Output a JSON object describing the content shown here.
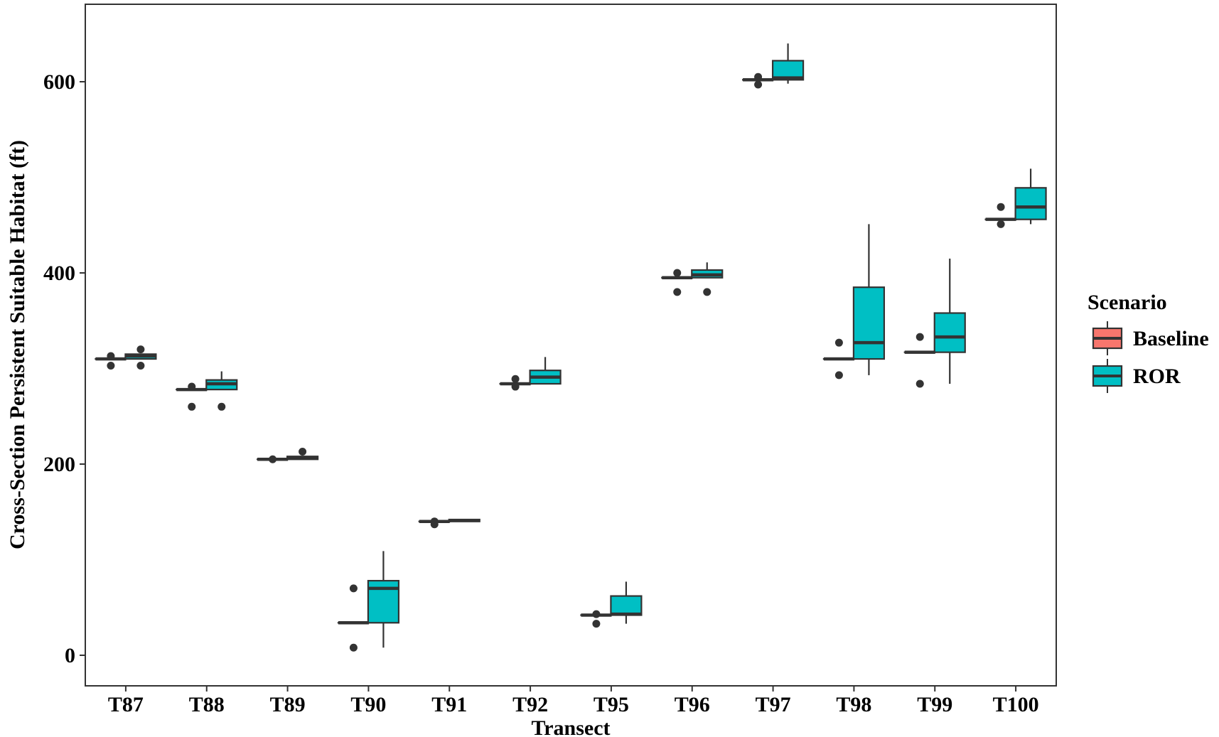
{
  "chart_data": {
    "type": "boxplot",
    "xlabel": "Transect",
    "ylabel": "Cross-Section Persistent Suitable Habitat (ft)",
    "ylim": [
      -30,
      680
    ],
    "yticks": [
      0,
      200,
      400,
      600
    ],
    "grid": false,
    "legend": {
      "title": "Scenario",
      "placement": "right",
      "entries": [
        {
          "name": "Baseline",
          "color": "#F8766D"
        },
        {
          "name": "ROR",
          "color": "#00BFC4"
        }
      ]
    },
    "categories": [
      "T87",
      "T88",
      "T89",
      "T90",
      "T91",
      "T92",
      "T95",
      "T96",
      "T97",
      "T98",
      "T99",
      "T100"
    ],
    "series": [
      {
        "name": "Baseline",
        "color": "#F8766D",
        "boxes": [
          {
            "q1": 310,
            "median": 310,
            "q3": 310,
            "whisker_low": 310,
            "whisker_high": 310,
            "outliers": [
              303,
              313
            ]
          },
          {
            "q1": 278,
            "median": 278,
            "q3": 278,
            "whisker_low": 278,
            "whisker_high": 278,
            "outliers": [
              260,
              281
            ]
          },
          {
            "q1": 205,
            "median": 205,
            "q3": 205,
            "whisker_low": 205,
            "whisker_high": 205,
            "outliers": [
              205
            ]
          },
          {
            "q1": 34,
            "median": 34,
            "q3": 34,
            "whisker_low": 34,
            "whisker_high": 34,
            "outliers": [
              8,
              70
            ]
          },
          {
            "q1": 140,
            "median": 140,
            "q3": 140,
            "whisker_low": 140,
            "whisker_high": 140,
            "outliers": [
              137,
              140
            ]
          },
          {
            "q1": 284,
            "median": 284,
            "q3": 284,
            "whisker_low": 284,
            "whisker_high": 284,
            "outliers": [
              281,
              289
            ]
          },
          {
            "q1": 42,
            "median": 42,
            "q3": 42,
            "whisker_low": 42,
            "whisker_high": 42,
            "outliers": [
              33,
              43
            ]
          },
          {
            "q1": 395,
            "median": 395,
            "q3": 395,
            "whisker_low": 395,
            "whisker_high": 395,
            "outliers": [
              380,
              400
            ]
          },
          {
            "q1": 602,
            "median": 602,
            "q3": 602,
            "whisker_low": 602,
            "whisker_high": 602,
            "outliers": [
              597,
              605
            ]
          },
          {
            "q1": 310,
            "median": 310,
            "q3": 310,
            "whisker_low": 310,
            "whisker_high": 310,
            "outliers": [
              293,
              327
            ]
          },
          {
            "q1": 317,
            "median": 317,
            "q3": 317,
            "whisker_low": 317,
            "whisker_high": 317,
            "outliers": [
              284,
              333
            ]
          },
          {
            "q1": 456,
            "median": 456,
            "q3": 456,
            "whisker_low": 456,
            "whisker_high": 456,
            "outliers": [
              451,
              469
            ]
          }
        ]
      },
      {
        "name": "ROR",
        "color": "#00BFC4",
        "boxes": [
          {
            "q1": 310,
            "median": 313,
            "q3": 315,
            "whisker_low": 310,
            "whisker_high": 315,
            "outliers": [
              303,
              320
            ]
          },
          {
            "q1": 278,
            "median": 284,
            "q3": 288,
            "whisker_low": 278,
            "whisker_high": 297,
            "outliers": [
              260
            ]
          },
          {
            "q1": 205,
            "median": 207,
            "q3": 208,
            "whisker_low": 205,
            "whisker_high": 208,
            "outliers": [
              213
            ]
          },
          {
            "q1": 34,
            "median": 70,
            "q3": 78,
            "whisker_low": 8,
            "whisker_high": 109,
            "outliers": []
          },
          {
            "q1": 140,
            "median": 141,
            "q3": 142,
            "whisker_low": 140,
            "whisker_high": 142,
            "outliers": []
          },
          {
            "q1": 284,
            "median": 291,
            "q3": 298,
            "whisker_low": 284,
            "whisker_high": 312,
            "outliers": []
          },
          {
            "q1": 42,
            "median": 43,
            "q3": 62,
            "whisker_low": 33,
            "whisker_high": 77,
            "outliers": []
          },
          {
            "q1": 395,
            "median": 398,
            "q3": 403,
            "whisker_low": 395,
            "whisker_high": 411,
            "outliers": [
              380
            ]
          },
          {
            "q1": 602,
            "median": 604,
            "q3": 622,
            "whisker_low": 598,
            "whisker_high": 640,
            "outliers": []
          },
          {
            "q1": 310,
            "median": 327,
            "q3": 385,
            "whisker_low": 293,
            "whisker_high": 451,
            "outliers": []
          },
          {
            "q1": 317,
            "median": 333,
            "q3": 358,
            "whisker_low": 284,
            "whisker_high": 415,
            "outliers": []
          },
          {
            "q1": 456,
            "median": 469,
            "q3": 489,
            "whisker_low": 451,
            "whisker_high": 509,
            "outliers": []
          }
        ]
      }
    ]
  }
}
